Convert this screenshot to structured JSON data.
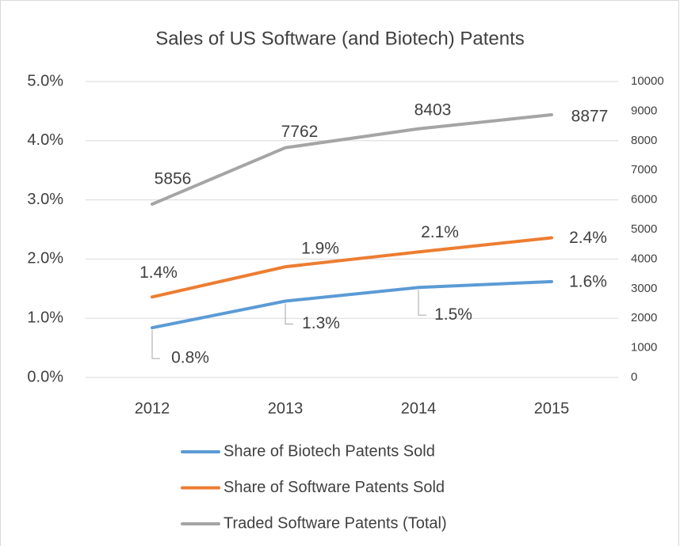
{
  "chart_data": {
    "type": "line",
    "title": "Sales of US Software (and Biotech) Patents",
    "categories": [
      "2012",
      "2013",
      "2014",
      "2015"
    ],
    "series": [
      {
        "name": "Share of Biotech Patents Sold",
        "color": "#5b9bd5",
        "values": [
          0.84,
          1.29,
          1.52,
          1.62
        ],
        "value_labels": [
          "0.8%",
          "1.3%",
          "1.5%",
          "1.6%"
        ]
      },
      {
        "name": "Share of Software Patents Sold",
        "color": "#ed7d31",
        "values": [
          1.36,
          1.87,
          2.12,
          2.36
        ],
        "value_labels": [
          "1.4%",
          "1.9%",
          "2.1%",
          "2.4%"
        ]
      },
      {
        "name": "Traded Software Patents (Total)",
        "color": "#a5a5a5",
        "axis": "y2",
        "values": [
          5856,
          7762,
          8403,
          8877
        ]
      }
    ],
    "ylim": [
      0,
      5
    ],
    "yticks": [
      {
        "value": 0,
        "label": "0.0%"
      },
      {
        "value": 1,
        "label": "1.0%"
      },
      {
        "value": 2,
        "label": "2.0%"
      },
      {
        "value": 3,
        "label": "3.0%"
      },
      {
        "value": 4,
        "label": "4.0%"
      },
      {
        "value": 5,
        "label": "5.0%"
      }
    ],
    "y2lim": [
      0,
      10000
    ],
    "y2ticks": [
      0,
      1000,
      2000,
      3000,
      4000,
      5000,
      6000,
      7000,
      8000,
      9000,
      10000
    ],
    "grid": true,
    "legend": "bottom"
  }
}
